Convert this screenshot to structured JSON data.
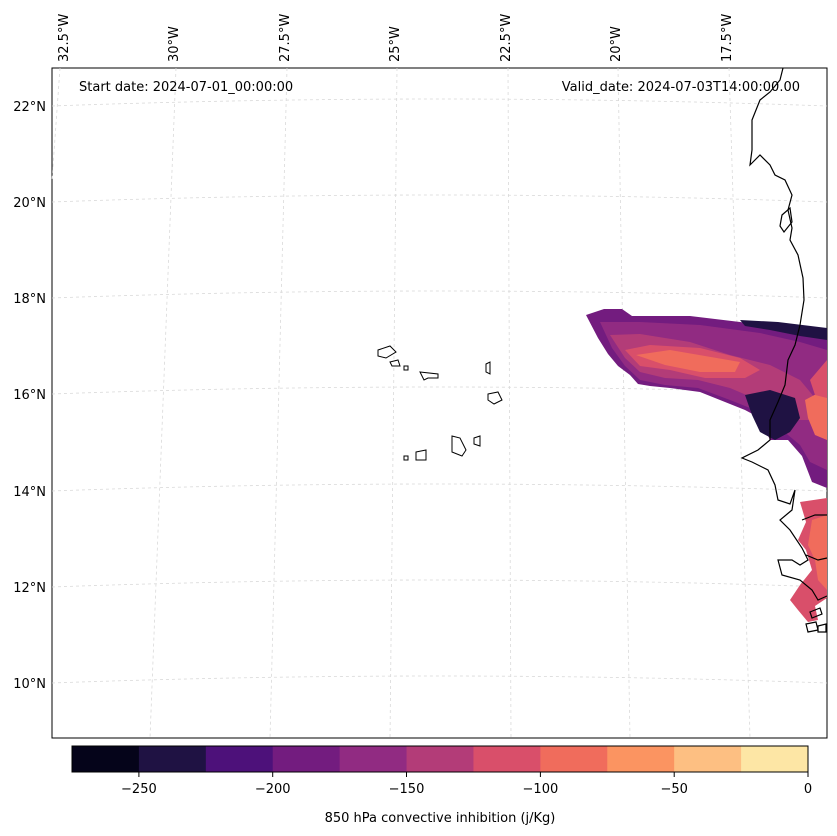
{
  "map": {
    "start_date": "Start date: 2024-07-01_00:00:00",
    "valid_date": "Valid_date: 2024-07-03T14:00:00.00",
    "lon_labels": [
      "32.5°W",
      "30°W",
      "27.5°W",
      "25°W",
      "22.5°W",
      "20°W",
      "17.5°W"
    ],
    "lat_labels": [
      "22°N",
      "20°N",
      "18°N",
      "16°N",
      "14°N",
      "12°N",
      "10°N"
    ],
    "field": "850 hPa convective inhibition (j/Kg)",
    "colormap": "magma",
    "region": "Cabo Verde islands and West African coast (Senegal, Gambia, Mauritania)"
  },
  "colorbar": {
    "label": "850 hPa convective inhibition (j/Kg)",
    "tick_labels": [
      "−250",
      "−200",
      "−150",
      "−100",
      "−50",
      "0"
    ],
    "levels": [
      -275,
      -250,
      -225,
      -200,
      -175,
      -150,
      -125,
      -100,
      -75,
      -50,
      -25,
      0
    ],
    "colors": [
      "#05041a",
      "#1f1243",
      "#4d117a",
      "#731c7f",
      "#912b82",
      "#b33c78",
      "#d94f6a",
      "#f06c5c",
      "#fb9461",
      "#fdbf82",
      "#fde6a5"
    ]
  }
}
